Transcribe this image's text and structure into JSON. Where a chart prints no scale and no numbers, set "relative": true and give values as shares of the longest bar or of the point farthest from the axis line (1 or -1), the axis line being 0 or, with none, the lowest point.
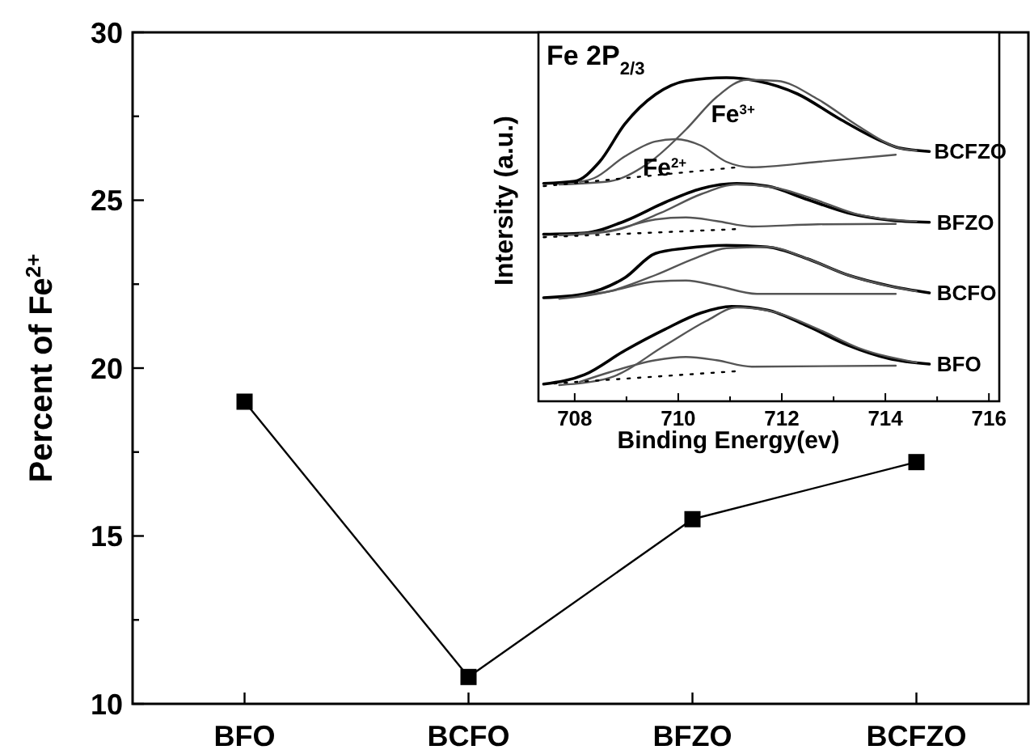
{
  "chart_data": [
    {
      "type": "line",
      "ylabel": "Percent of Fe$^{2+}$",
      "categories": [
        "BFO",
        "BCFO",
        "BFZO",
        "BCFZO"
      ],
      "values": [
        19.0,
        10.8,
        15.5,
        17.2
      ],
      "color": "#000000",
      "marker": "square",
      "ylim": [
        10,
        30
      ],
      "yticks": [
        10,
        {
          "value": 12.5,
          "label": null
        },
        15,
        {
          "value": 17.5,
          "label": null
        },
        20,
        {
          "value": 22.5,
          "label": null
        },
        25,
        {
          "value": 27.5,
          "label": null
        },
        30
      ],
      "grid": false
    },
    {
      "type": "line",
      "title": "Fe 2P$_{2/3}$",
      "xlabel": "Binding Energy(ev)",
      "ylabel": "Intersity (a.u.)",
      "relative": true,
      "tick_labels": "x",
      "xlim": [
        707.3,
        716.2
      ],
      "xticks": [
        708,
        {
          "value": 709,
          "label": null
        },
        710,
        {
          "value": 711,
          "label": null
        },
        712,
        {
          "value": 713,
          "label": null
        },
        714,
        {
          "value": 715,
          "label": null
        },
        716
      ],
      "grid": false,
      "marker": "none",
      "line_style": "solid",
      "series": [
        {
          "color": "#000000",
          "x": [
            707.4,
            708.0,
            708.48,
            708.97,
            709.56,
            710.15,
            710.93,
            711.52,
            712.3,
            713.09,
            713.87,
            714.26,
            714.85
          ],
          "values": [
            0.673,
            0.68,
            0.74,
            0.857,
            0.948,
            0.99,
            1.0,
            0.99,
            0.95,
            0.875,
            0.808,
            0.783,
            0.772
          ]
        },
        {
          "color": "#555555",
          "x": [
            707.7,
            708.68,
            709.46,
            710.15,
            710.74,
            711.32,
            711.91,
            712.7,
            713.48,
            714.26,
            714.6
          ],
          "values": [
            0.67,
            0.68,
            0.74,
            0.84,
            0.94,
            0.993,
            0.99,
            0.933,
            0.85,
            0.783,
            0.775
          ]
        },
        {
          "color": "#555555",
          "x": [
            708.1,
            708.38,
            708.97,
            709.56,
            709.95,
            710.44,
            710.93,
            711.42,
            712.7,
            714.2
          ],
          "values": [
            0.678,
            0.69,
            0.757,
            0.803,
            0.81,
            0.79,
            0.74,
            0.723,
            0.74,
            0.762
          ]
        },
        {
          "color": "#000000",
          "line_style": "dotted",
          "x": [
            707.4,
            711.13
          ],
          "values": [
            0.665,
            0.723
          ]
        },
        {
          "color": "#000000",
          "x": [
            707.4,
            708.19,
            708.97,
            709.75,
            710.44,
            711.13,
            711.72,
            712.5,
            713.28,
            714.07,
            714.85
          ],
          "values": [
            0.516,
            0.52,
            0.557,
            0.615,
            0.657,
            0.673,
            0.665,
            0.623,
            0.582,
            0.56,
            0.553
          ]
        },
        {
          "color": "#555555",
          "x": [
            707.7,
            708.68,
            709.66,
            710.44,
            711.13,
            711.81,
            712.7,
            713.48,
            714.6
          ],
          "values": [
            0.513,
            0.525,
            0.582,
            0.64,
            0.67,
            0.662,
            0.62,
            0.577,
            0.556
          ]
        },
        {
          "color": "#555555",
          "x": [
            708.1,
            708.68,
            709.56,
            710.15,
            710.74,
            711.42,
            712.7,
            714.2
          ],
          "values": [
            0.518,
            0.527,
            0.562,
            0.568,
            0.557,
            0.54,
            0.547,
            0.548
          ]
        },
        {
          "color": "#000000",
          "line_style": "dotted",
          "x": [
            707.4,
            711.13
          ],
          "values": [
            0.507,
            0.532
          ]
        },
        {
          "color": "#000000",
          "x": [
            707.4,
            708.19,
            708.97,
            709.56,
            710.15,
            710.93,
            711.72,
            712.5,
            713.28,
            714.07,
            714.85
          ],
          "values": [
            0.32,
            0.332,
            0.382,
            0.457,
            0.473,
            0.482,
            0.477,
            0.44,
            0.39,
            0.357,
            0.335
          ]
        },
        {
          "color": "#555555",
          "x": [
            707.7,
            708.68,
            709.56,
            710.34,
            710.93,
            711.72,
            712.5,
            713.28,
            714.6
          ],
          "values": [
            0.317,
            0.34,
            0.39,
            0.443,
            0.473,
            0.477,
            0.44,
            0.39,
            0.34
          ]
        },
        {
          "color": "#555555",
          "x": [
            708.1,
            708.68,
            709.56,
            710.15,
            710.74,
            711.52,
            714.2
          ],
          "values": [
            0.325,
            0.34,
            0.37,
            0.373,
            0.357,
            0.332,
            0.332
          ]
        },
        {
          "color": "#000000",
          "x": [
            707.4,
            708.19,
            708.97,
            709.75,
            710.44,
            711.03,
            711.72,
            712.5,
            713.28,
            714.07,
            714.85
          ],
          "values": [
            0.053,
            0.082,
            0.157,
            0.223,
            0.273,
            0.293,
            0.282,
            0.232,
            0.173,
            0.132,
            0.115
          ]
        },
        {
          "color": "#555555",
          "x": [
            707.7,
            708.68,
            709.75,
            710.54,
            711.13,
            711.81,
            712.7,
            713.48,
            714.6
          ],
          "values": [
            0.05,
            0.073,
            0.173,
            0.248,
            0.29,
            0.278,
            0.223,
            0.165,
            0.12
          ]
        },
        {
          "color": "#555555",
          "x": [
            708.1,
            708.68,
            709.56,
            710.15,
            710.74,
            711.42,
            714.2
          ],
          "values": [
            0.06,
            0.09,
            0.127,
            0.137,
            0.127,
            0.107,
            0.11
          ]
        },
        {
          "color": "#000000",
          "line_style": "dotted",
          "x": [
            707.4,
            711.13
          ],
          "values": [
            0.053,
            0.093
          ]
        }
      ],
      "annotations": [
        {
          "text": "Fe$^{3+}$",
          "x": 710.54,
          "y": 0.89
        },
        {
          "text": "Fe$^{2+}$",
          "x": 709.22,
          "y": 0.725
        },
        {
          "text": "BCFZO",
          "x": 714.85,
          "y": 0.772
        },
        {
          "text": "BFZO",
          "x": 714.9,
          "y": 0.553
        },
        {
          "text": "BCFO",
          "x": 714.9,
          "y": 0.335
        },
        {
          "text": "BFO",
          "x": 714.9,
          "y": 0.115
        }
      ]
    }
  ]
}
